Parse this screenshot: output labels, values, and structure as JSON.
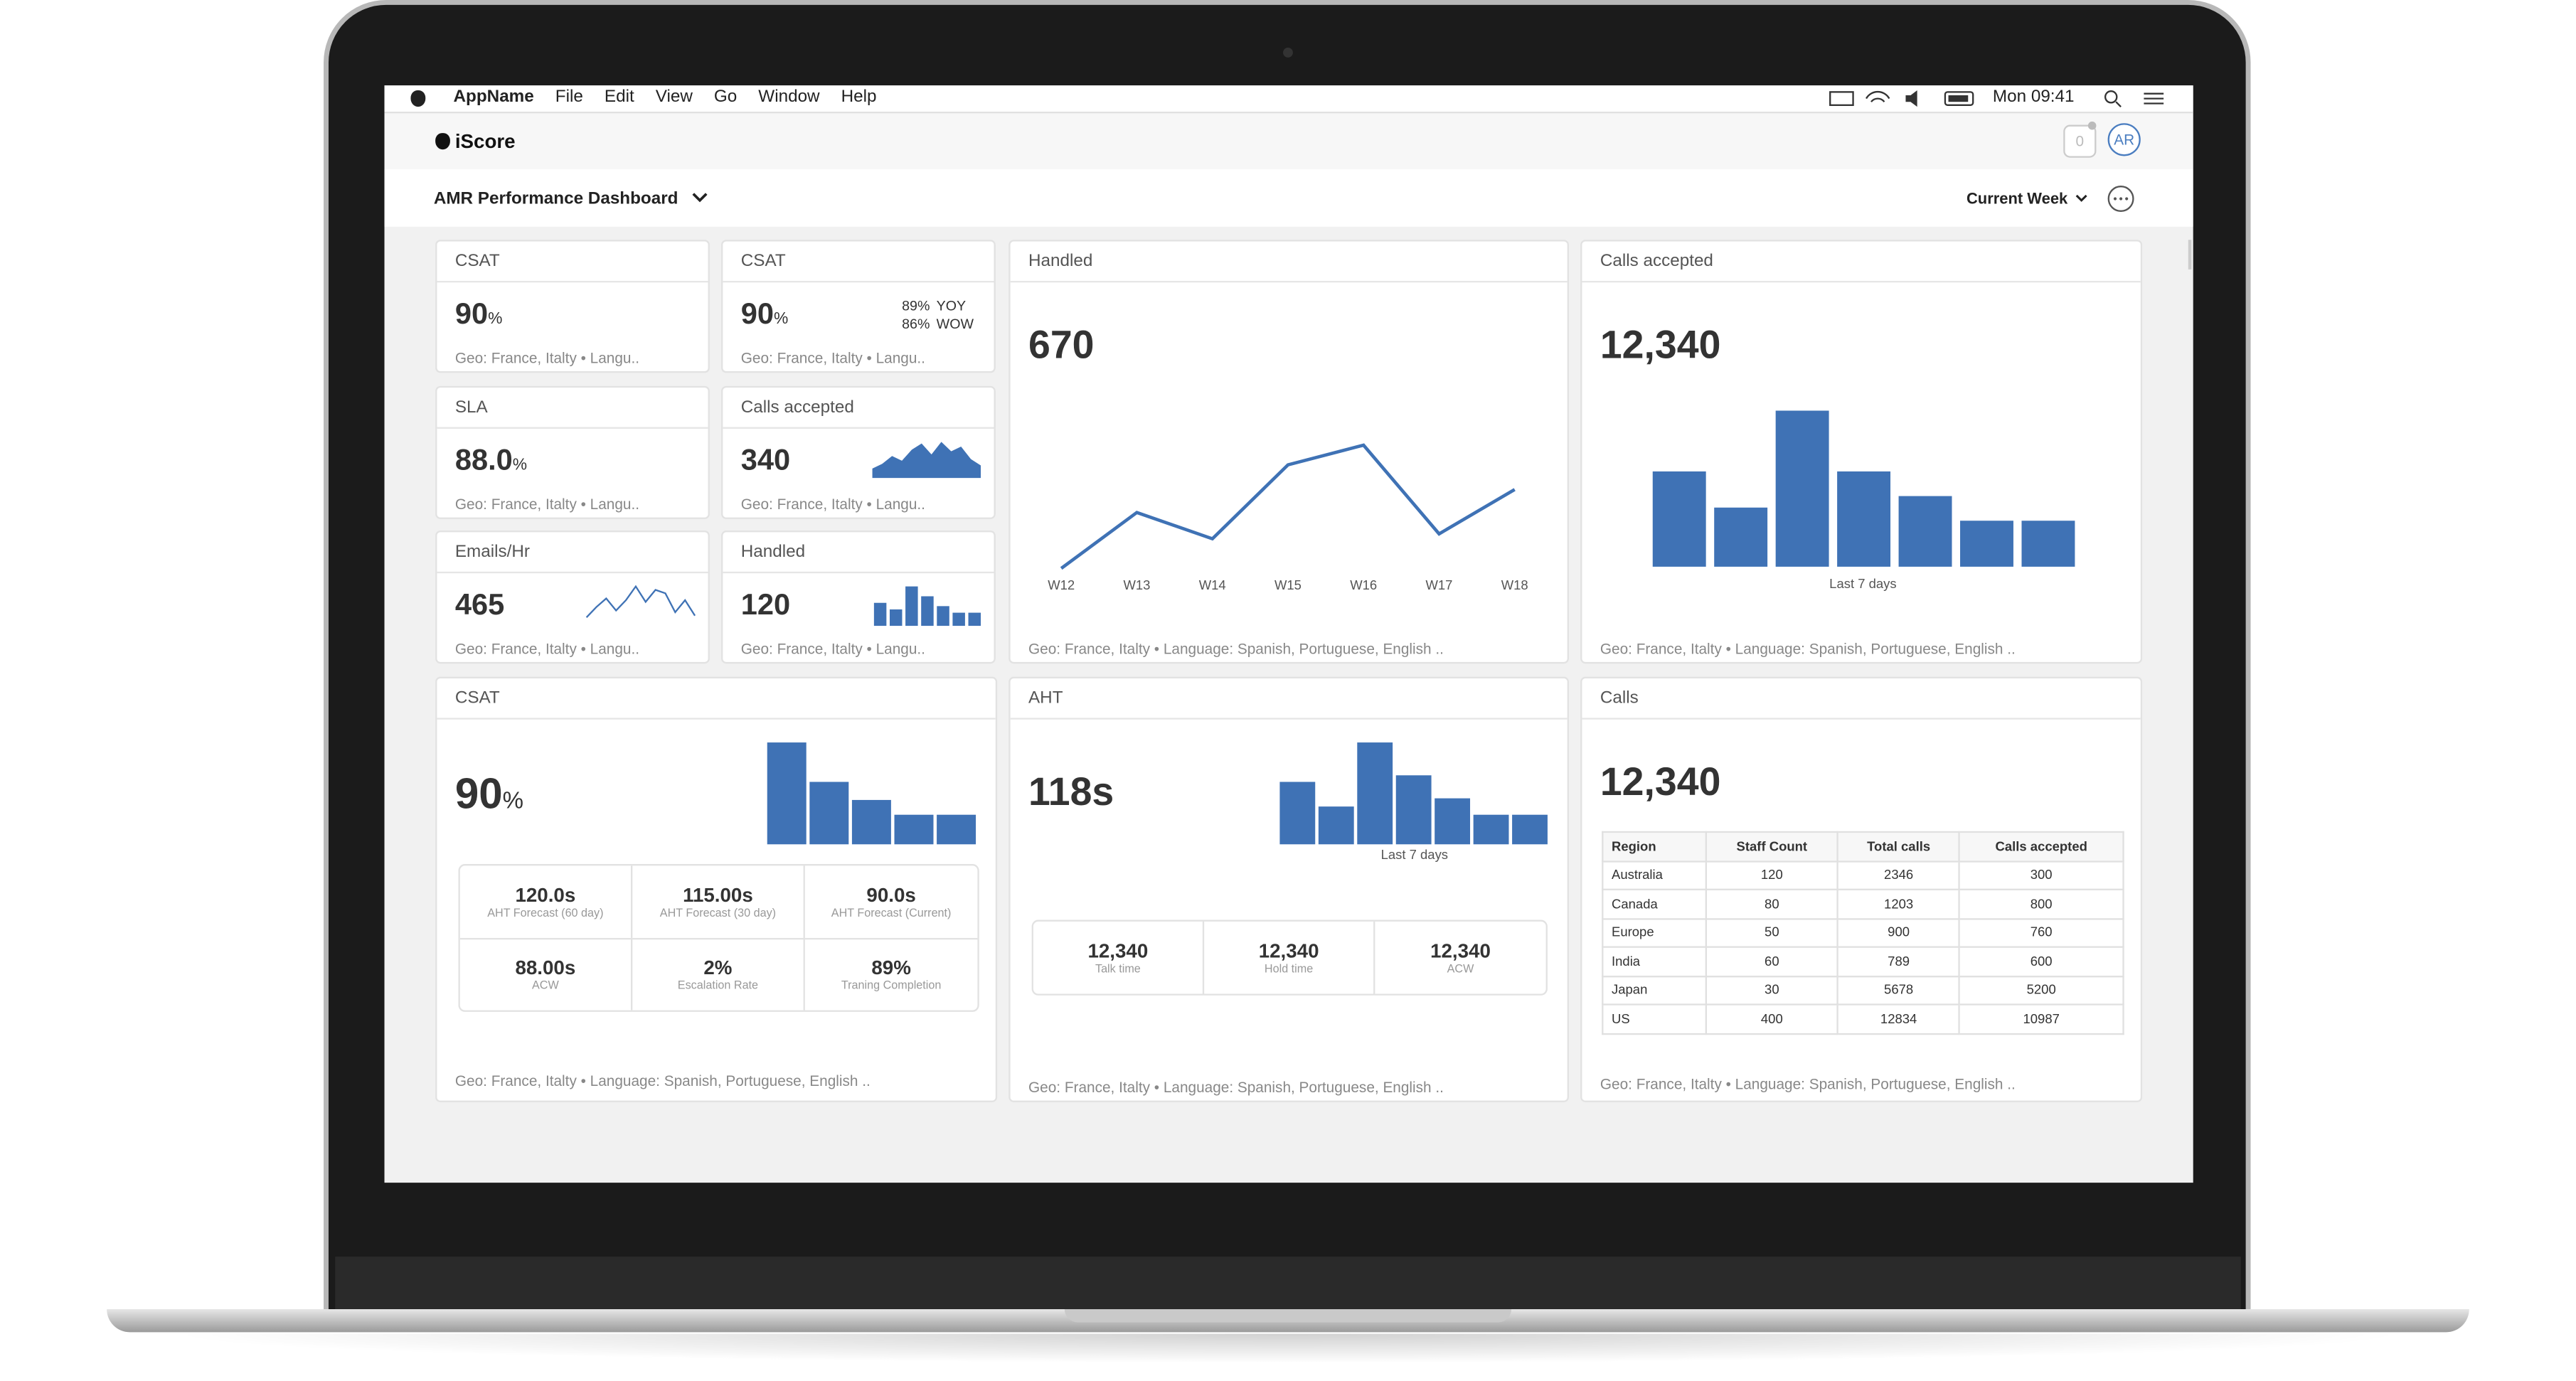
{
  "menu_bar": {
    "items": [
      "AppName",
      "File",
      "Edit",
      "View",
      "Go",
      "Window",
      "Help"
    ],
    "clock": "Mon 09:41"
  },
  "app": {
    "name": "iScore",
    "notification_count": 0,
    "avatar": "AR"
  },
  "toolbar": {
    "dashboard_title": "AMR Performance Dashboard",
    "period": "Current Week"
  },
  "small_tiles": [
    {
      "title": "CSAT",
      "value": 90,
      "unit": "%",
      "footer": "Geo: France, Italty • Langu.."
    },
    {
      "title": "CSAT",
      "value": 90,
      "unit": "%",
      "footer": "Geo: France, Italty • Langu..",
      "comparisons": [
        {
          "value": "89%",
          "label": "YOY"
        },
        {
          "value": "86%",
          "label": "WOW"
        }
      ]
    },
    {
      "title": "SLA",
      "value": "88.0",
      "unit": "%",
      "footer": "Geo: France, Italty • Langu.."
    },
    {
      "title": "Calls accepted",
      "value": 340,
      "footer": "Geo: France, Italty • Langu..",
      "chart": {
        "type": "area",
        "values": [
          6,
          9,
          14,
          11,
          18,
          22,
          15,
          23,
          17,
          20,
          12,
          8
        ]
      }
    },
    {
      "title": "Emails/Hr",
      "value": 465,
      "footer": "Geo: France, Italty • Langu..",
      "chart": {
        "type": "line",
        "values": [
          3,
          9,
          14,
          7,
          13,
          21,
          12,
          19,
          17,
          6,
          13,
          4
        ]
      }
    },
    {
      "title": "Handled",
      "value": 120,
      "footer": "Geo: France, Italty • Langu..",
      "chart": {
        "type": "bar",
        "values": [
          14,
          10,
          24,
          18,
          12,
          8,
          8
        ]
      }
    }
  ],
  "handled": {
    "title": "Handled",
    "value": 670,
    "footer": "Geo: France, Italty • Language: Spanish, Portuguese, English ..",
    "chart": {
      "type": "line",
      "categories": [
        "W12",
        "W13",
        "W14",
        "W15",
        "W16",
        "W17",
        "W18"
      ],
      "values": [
        7,
        41,
        25,
        70,
        82,
        28,
        55
      ]
    }
  },
  "calls_accepted": {
    "title": "Calls accepted",
    "value": "12,340",
    "footer": "Geo: France, Italty • Language: Spanish, Portuguese, English ..",
    "chart": {
      "type": "bar",
      "values": [
        58,
        36,
        95,
        58,
        43,
        28,
        28
      ],
      "x_label": "Last 7 days"
    }
  },
  "csat": {
    "title": "CSAT",
    "value": 90,
    "unit": "%",
    "footer": "Geo: France, Italty • Language: Spanish, Portuguese, English ..",
    "chart": {
      "type": "bar",
      "values": [
        62,
        38,
        27,
        18,
        18
      ]
    },
    "stats": [
      {
        "value": "120.0s",
        "label": "AHT Forecast (60 day)"
      },
      {
        "value": "115.00s",
        "label": "AHT Forecast (30 day)"
      },
      {
        "value": "90.0s",
        "label": "AHT Forecast (Current)"
      },
      {
        "value": "88.00s",
        "label": "ACW"
      },
      {
        "value": "2%",
        "label": "Escalation Rate"
      },
      {
        "value": "89%",
        "label": "Traning Completion"
      }
    ]
  },
  "aht": {
    "title": "AHT",
    "value": "118s",
    "footer": "Geo: France, Italty • Language: Spanish, Portuguese, English ..",
    "chart": {
      "type": "bar",
      "values": [
        38,
        23,
        62,
        42,
        28,
        18,
        18
      ],
      "x_label": "Last 7 days"
    },
    "stats": [
      {
        "value": "12,340",
        "label": "Talk time"
      },
      {
        "value": "12,340",
        "label": "Hold time"
      },
      {
        "value": "12,340",
        "label": "ACW"
      }
    ]
  },
  "calls": {
    "title": "Calls",
    "value": "12,340",
    "footer": "Geo: France, Italty • Language: Spanish, Portuguese, English ..",
    "table": {
      "columns": [
        "Region",
        "Staff Count",
        "Total calls",
        "Calls accepted"
      ],
      "rows": [
        [
          "Australia",
          120,
          2346,
          300
        ],
        [
          "Canada",
          80,
          1203,
          800
        ],
        [
          "Europe",
          50,
          900,
          760
        ],
        [
          "India",
          60,
          789,
          600
        ],
        [
          "Japan",
          30,
          5678,
          5200
        ],
        [
          "US",
          400,
          12834,
          10987
        ]
      ]
    }
  }
}
